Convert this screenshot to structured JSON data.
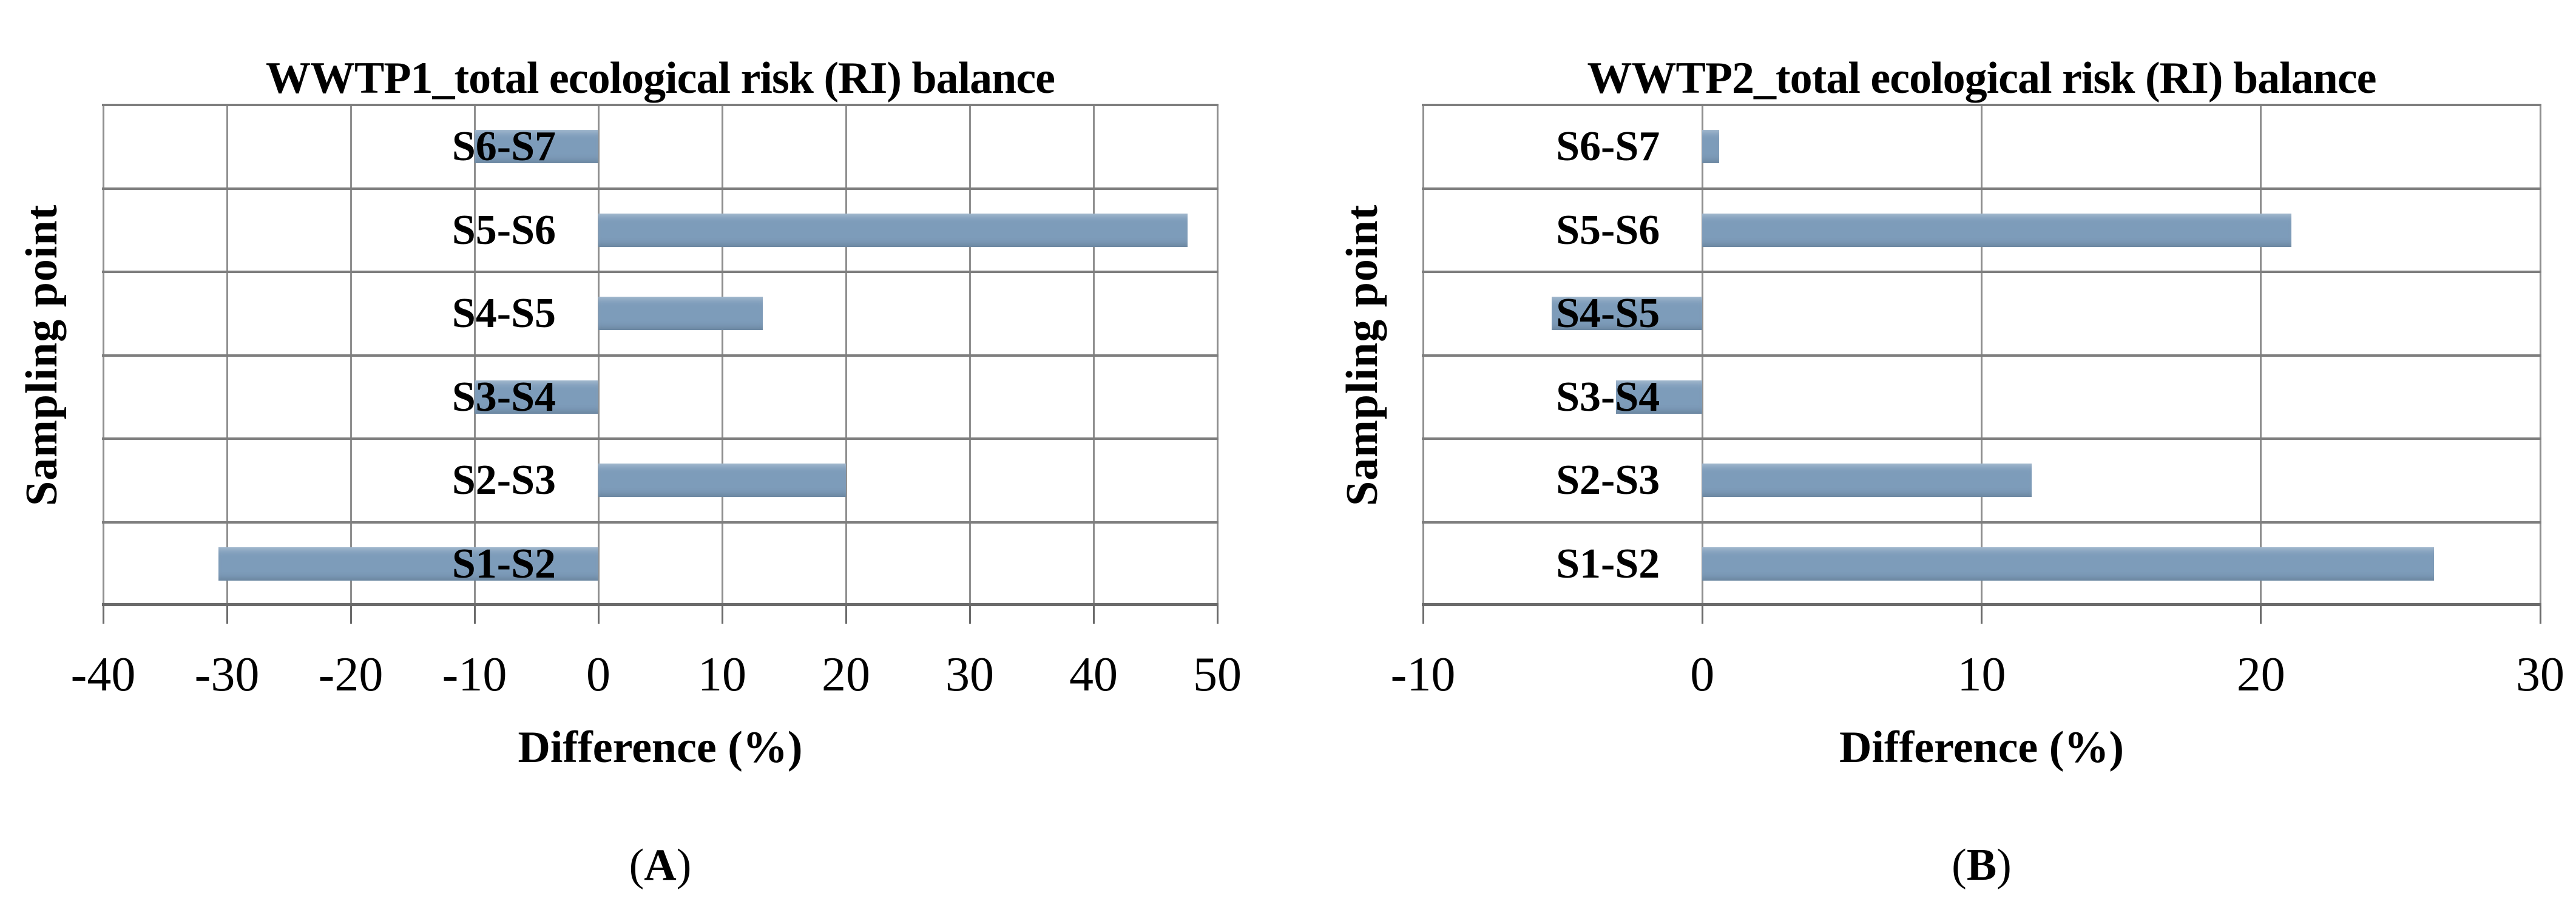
{
  "figure": {
    "description_visible_text_only": true
  },
  "chart_data": [
    {
      "type": "bar",
      "orientation": "horizontal",
      "title": "WWTP1_total ecological risk (RI) balance",
      "xlabel": "Difference (%)",
      "ylabel": "Sampling point",
      "caption_open": "(",
      "caption_letter": "A",
      "caption_close": ")",
      "categories": [
        "S6-S7",
        "S5-S6",
        "S4-S5",
        "S3-S4",
        "S2-S3",
        "S1-S2"
      ],
      "values": [
        -10,
        47.6,
        13.3,
        -10,
        20,
        -30.7
      ],
      "xlim": [
        -40,
        50
      ],
      "xticks": [
        -40,
        -30,
        -20,
        -10,
        0,
        10,
        20,
        30,
        40,
        50
      ],
      "bar_color": "#7D9CBA",
      "grid": true,
      "legend": "none"
    },
    {
      "type": "bar",
      "orientation": "horizontal",
      "title": "WWTP2_total ecological risk (RI) balance",
      "xlabel": "Difference (%)",
      "ylabel": "Sampling point",
      "caption_open": "(",
      "caption_letter": "B",
      "caption_close": ")",
      "categories": [
        "S6-S7",
        "S5-S6",
        "S4-S5",
        "S3-S4",
        "S2-S3",
        "S1-S2"
      ],
      "values": [
        0.6,
        21.1,
        -5.4,
        -3.1,
        11.8,
        26.2
      ],
      "xlim": [
        -10,
        30
      ],
      "xticks": [
        -10,
        0,
        10,
        20,
        30
      ],
      "bar_color": "#7D9CBA",
      "grid": true,
      "legend": "none"
    }
  ]
}
